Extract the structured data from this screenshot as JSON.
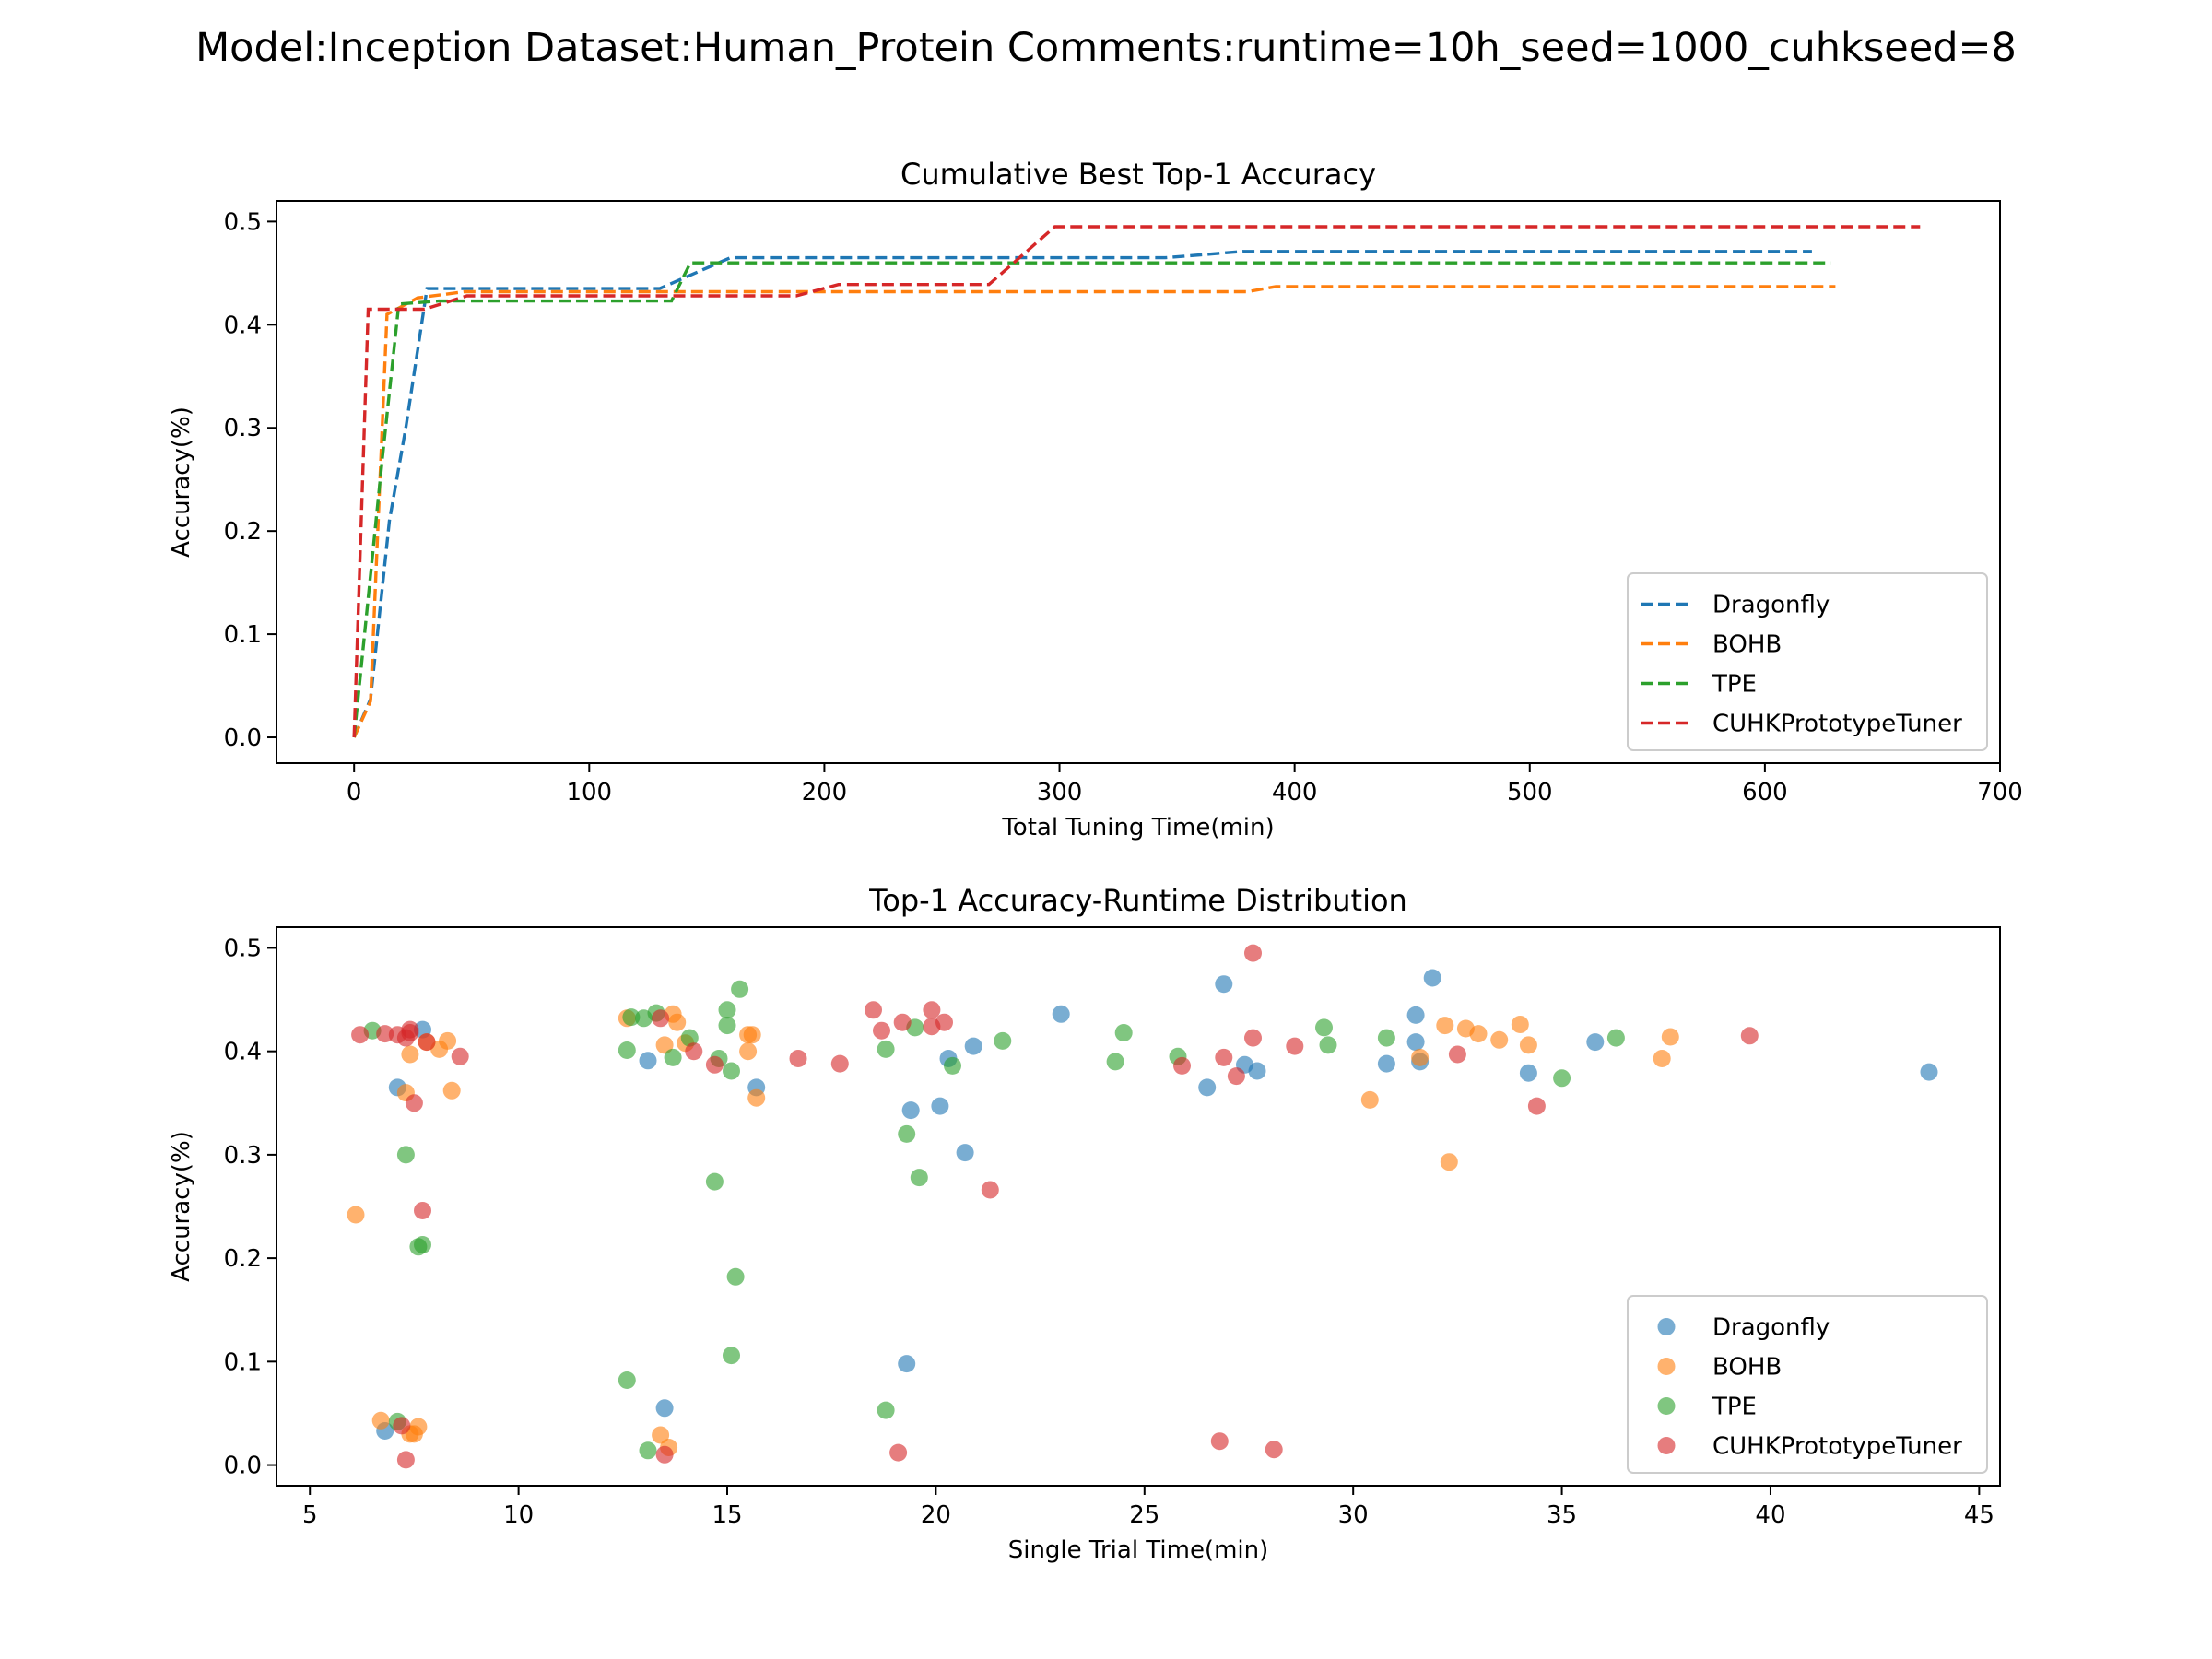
{
  "suptitle": "Model:Inception Dataset:Human_Protein Comments:runtime=10h_seed=1000_cuhkseed=8",
  "colors": {
    "Dragonfly": "#1f77b4",
    "BOHB": "#ff7f0e",
    "TPE": "#2ca02c",
    "CUHKPrototypeTuner": "#d62728"
  },
  "chart_data": [
    {
      "type": "line",
      "title": "Cumulative Best Top-1 Accuracy",
      "xlabel": "Total Tuning Time(min)",
      "ylabel": "Accuracy(%)",
      "xlim": [
        -33,
        700
      ],
      "ylim": [
        -0.025,
        0.52
      ],
      "xticks": [
        0,
        100,
        200,
        300,
        400,
        500,
        600,
        700
      ],
      "xtick_labels": [
        "0",
        "100",
        "200",
        "300",
        "400",
        "500",
        "600",
        "700"
      ],
      "yticks": [
        0.0,
        0.1,
        0.2,
        0.3,
        0.4,
        0.5
      ],
      "ytick_labels": [
        "0.0",
        "0.1",
        "0.2",
        "0.3",
        "0.4",
        "0.5"
      ],
      "grid": false,
      "legend": "lower-right",
      "line_style": "dashed",
      "series": [
        {
          "name": "Dragonfly",
          "x": [
            0,
            7,
            15,
            22,
            31,
            130,
            160,
            345,
            378,
            620
          ],
          "y": [
            0,
            0.037,
            0.21,
            0.3,
            0.435,
            0.435,
            0.465,
            0.465,
            0.471,
            0.471
          ]
        },
        {
          "name": "BOHB",
          "x": [
            0,
            7,
            14,
            27,
            47,
            380,
            392,
            630
          ],
          "y": [
            0,
            0.035,
            0.41,
            0.426,
            0.432,
            0.432,
            0.437,
            0.437
          ]
        },
        {
          "name": "TPE",
          "x": [
            0,
            12,
            19,
            36,
            135,
            143,
            160,
            628
          ],
          "y": [
            0,
            0.27,
            0.42,
            0.423,
            0.423,
            0.46,
            0.46,
            0.46
          ]
        },
        {
          "name": "CUHKPrototypeTuner",
          "x": [
            0,
            6,
            30,
            48,
            188,
            206,
            270,
            298,
            666
          ],
          "y": [
            0,
            0.415,
            0.415,
            0.428,
            0.428,
            0.439,
            0.439,
            0.495,
            0.495
          ]
        }
      ]
    },
    {
      "type": "scatter",
      "title": "Top-1 Accuracy-Runtime Distribution",
      "xlabel": "Single Trial Time(min)",
      "ylabel": "Accuracy(%)",
      "xlim": [
        4.2,
        45.5
      ],
      "ylim": [
        -0.02,
        0.52
      ],
      "xticks": [
        5,
        10,
        15,
        20,
        25,
        30,
        35,
        40,
        45
      ],
      "xtick_labels": [
        "5",
        "10",
        "15",
        "20",
        "25",
        "30",
        "35",
        "40",
        "45"
      ],
      "yticks": [
        0.0,
        0.1,
        0.2,
        0.3,
        0.4,
        0.5
      ],
      "ytick_labels": [
        "0.0",
        "0.1",
        "0.2",
        "0.3",
        "0.4",
        "0.5"
      ],
      "grid": false,
      "legend": "lower-right",
      "series": [
        {
          "name": "Dragonfly",
          "points": [
            [
              6.8,
              0.033
            ],
            [
              7.1,
              0.365
            ],
            [
              7.7,
              0.421
            ],
            [
              13.1,
              0.391
            ],
            [
              13.5,
              0.055
            ],
            [
              15.7,
              0.365
            ],
            [
              19.3,
              0.098
            ],
            [
              19.4,
              0.343
            ],
            [
              20.1,
              0.347
            ],
            [
              20.3,
              0.393
            ],
            [
              20.7,
              0.302
            ],
            [
              20.9,
              0.405
            ],
            [
              23.0,
              0.436
            ],
            [
              26.5,
              0.365
            ],
            [
              26.9,
              0.465
            ],
            [
              27.4,
              0.387
            ],
            [
              27.7,
              0.381
            ],
            [
              30.8,
              0.388
            ],
            [
              31.5,
              0.435
            ],
            [
              31.5,
              0.409
            ],
            [
              31.6,
              0.39
            ],
            [
              31.9,
              0.471
            ],
            [
              34.2,
              0.379
            ],
            [
              35.8,
              0.409
            ],
            [
              43.8,
              0.38
            ]
          ]
        },
        {
          "name": "BOHB",
          "points": [
            [
              6.1,
              0.242
            ],
            [
              6.7,
              0.043
            ],
            [
              7.3,
              0.36
            ],
            [
              7.4,
              0.397
            ],
            [
              7.4,
              0.03
            ],
            [
              7.5,
              0.03
            ],
            [
              7.6,
              0.037
            ],
            [
              7.8,
              0.409
            ],
            [
              8.1,
              0.402
            ],
            [
              8.3,
              0.41
            ],
            [
              8.4,
              0.362
            ],
            [
              12.6,
              0.432
            ],
            [
              13.4,
              0.029
            ],
            [
              13.5,
              0.406
            ],
            [
              13.6,
              0.017
            ],
            [
              13.7,
              0.436
            ],
            [
              13.8,
              0.428
            ],
            [
              14.0,
              0.408
            ],
            [
              15.5,
              0.416
            ],
            [
              15.5,
              0.4
            ],
            [
              15.6,
              0.416
            ],
            [
              15.7,
              0.355
            ],
            [
              30.4,
              0.353
            ],
            [
              31.6,
              0.394
            ],
            [
              32.2,
              0.425
            ],
            [
              32.3,
              0.293
            ],
            [
              32.7,
              0.422
            ],
            [
              33.0,
              0.417
            ],
            [
              33.5,
              0.411
            ],
            [
              34.0,
              0.426
            ],
            [
              34.2,
              0.406
            ],
            [
              37.4,
              0.393
            ],
            [
              37.6,
              0.414
            ]
          ]
        },
        {
          "name": "TPE",
          "points": [
            [
              6.5,
              0.42
            ],
            [
              7.1,
              0.042
            ],
            [
              7.3,
              0.3
            ],
            [
              7.6,
              0.211
            ],
            [
              7.7,
              0.213
            ],
            [
              12.6,
              0.401
            ],
            [
              12.7,
              0.433
            ],
            [
              12.6,
              0.082
            ],
            [
              13.0,
              0.432
            ],
            [
              13.1,
              0.014
            ],
            [
              13.3,
              0.437
            ],
            [
              13.7,
              0.394
            ],
            [
              14.1,
              0.413
            ],
            [
              14.7,
              0.274
            ],
            [
              14.8,
              0.393
            ],
            [
              15.0,
              0.44
            ],
            [
              15.0,
              0.425
            ],
            [
              15.1,
              0.381
            ],
            [
              15.1,
              0.106
            ],
            [
              15.2,
              0.182
            ],
            [
              15.3,
              0.46
            ],
            [
              18.8,
              0.402
            ],
            [
              18.8,
              0.053
            ],
            [
              19.3,
              0.32
            ],
            [
              19.5,
              0.423
            ],
            [
              19.6,
              0.278
            ],
            [
              20.4,
              0.386
            ],
            [
              21.6,
              0.41
            ],
            [
              24.3,
              0.39
            ],
            [
              24.5,
              0.418
            ],
            [
              25.8,
              0.395
            ],
            [
              29.3,
              0.423
            ],
            [
              29.4,
              0.406
            ],
            [
              30.8,
              0.413
            ],
            [
              35.0,
              0.374
            ],
            [
              36.3,
              0.413
            ]
          ]
        },
        {
          "name": "CUHKPrototypeTuner",
          "points": [
            [
              6.2,
              0.416
            ],
            [
              6.8,
              0.417
            ],
            [
              7.1,
              0.416
            ],
            [
              7.2,
              0.038
            ],
            [
              7.3,
              0.005
            ],
            [
              7.3,
              0.413
            ],
            [
              7.4,
              0.418
            ],
            [
              7.4,
              0.421
            ],
            [
              7.5,
              0.35
            ],
            [
              7.7,
              0.246
            ],
            [
              7.8,
              0.409
            ],
            [
              8.6,
              0.395
            ],
            [
              13.4,
              0.432
            ],
            [
              13.5,
              0.01
            ],
            [
              14.2,
              0.4
            ],
            [
              14.7,
              0.387
            ],
            [
              16.7,
              0.393
            ],
            [
              17.7,
              0.388
            ],
            [
              18.5,
              0.44
            ],
            [
              18.7,
              0.42
            ],
            [
              19.1,
              0.012
            ],
            [
              19.2,
              0.428
            ],
            [
              19.9,
              0.424
            ],
            [
              19.9,
              0.44
            ],
            [
              20.2,
              0.428
            ],
            [
              21.3,
              0.266
            ],
            [
              25.9,
              0.386
            ],
            [
              26.8,
              0.023
            ],
            [
              26.9,
              0.394
            ],
            [
              27.2,
              0.376
            ],
            [
              27.6,
              0.413
            ],
            [
              27.6,
              0.495
            ],
            [
              28.1,
              0.015
            ],
            [
              28.6,
              0.405
            ],
            [
              32.5,
              0.397
            ],
            [
              34.4,
              0.347
            ],
            [
              39.5,
              0.415
            ]
          ]
        }
      ]
    }
  ]
}
